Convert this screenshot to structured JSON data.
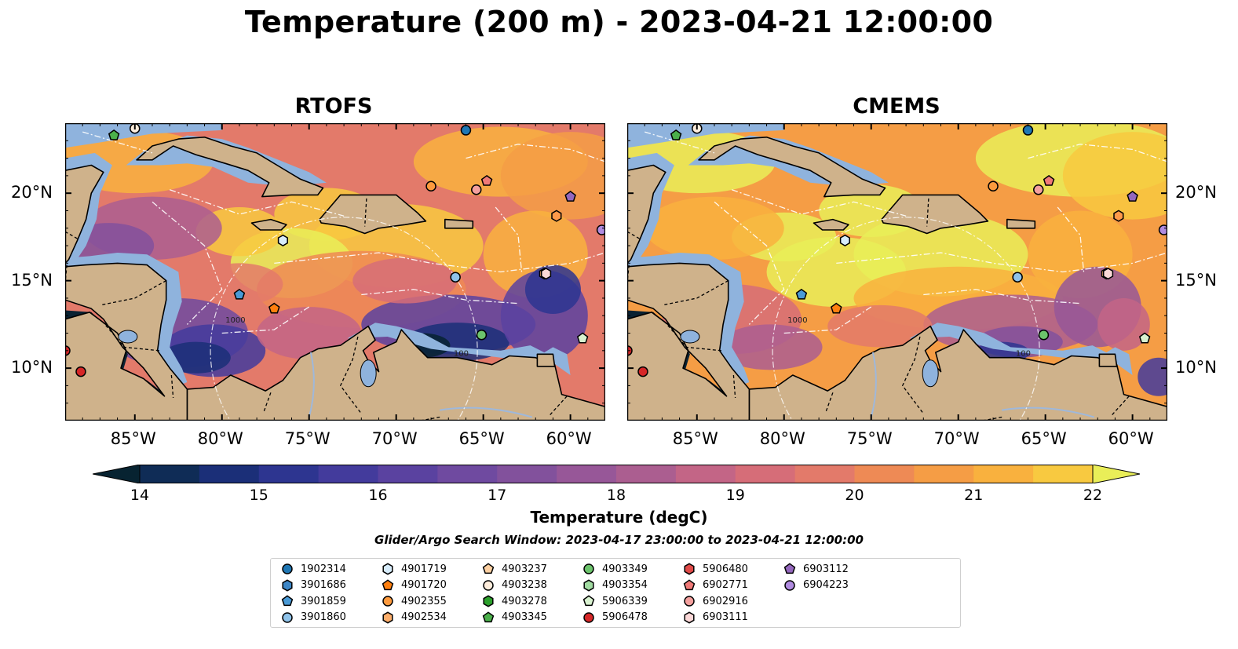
{
  "title": "Temperature (200 m) - 2023-04-21 12:00:00",
  "panels": [
    {
      "name": "RTOFS",
      "variant": "rtofs"
    },
    {
      "name": "CMEMS",
      "variant": "cmems"
    }
  ],
  "map": {
    "lon_range": [
      -89,
      -58
    ],
    "lat_range": [
      7,
      24
    ],
    "lon_ticks": [
      {
        "value": -85,
        "label": "85°W"
      },
      {
        "value": -80,
        "label": "80°W"
      },
      {
        "value": -75,
        "label": "75°W"
      },
      {
        "value": -70,
        "label": "70°W"
      },
      {
        "value": -65,
        "label": "65°W"
      },
      {
        "value": -60,
        "label": "60°W"
      }
    ],
    "lat_ticks": [
      {
        "value": 10,
        "label": "10°N"
      },
      {
        "value": 15,
        "label": "15°N"
      },
      {
        "value": 20,
        "label": "20°N"
      }
    ],
    "contour_labels": [
      "1000",
      "100"
    ]
  },
  "colorbar": {
    "min": 14,
    "max": 22,
    "step": 0.5,
    "extend": "both",
    "ticks": [
      "14",
      "15",
      "16",
      "17",
      "18",
      "19",
      "20",
      "21",
      "22"
    ],
    "label": "Temperature (degC)",
    "colors": [
      "#072331",
      "#0f2c56",
      "#1b2f78",
      "#2d3590",
      "#433b9c",
      "#5a42a0",
      "#6f4aa0",
      "#82519c",
      "#975798",
      "#ab5e90",
      "#c36586",
      "#d66d78",
      "#e37a6a",
      "#ee8a55",
      "#f59d45",
      "#f9b13e",
      "#f8c940",
      "#e9ee58"
    ]
  },
  "search_window": "Glider/Argo Search Window: 2023-04-17 23:00:00 to 2023-04-21 12:00:00",
  "floats": [
    {
      "id": "1902314",
      "marker": "circle",
      "color": "#1f77b4",
      "lon": -66.0,
      "lat": 23.6
    },
    {
      "id": "3901686",
      "marker": "hexagon",
      "color": "#3d86c6",
      "lon": null,
      "lat": null
    },
    {
      "id": "3901859",
      "marker": "pentagon",
      "color": "#4a9ad6",
      "lon": -79.0,
      "lat": 14.2
    },
    {
      "id": "3901860",
      "marker": "circle",
      "color": "#8fc3ea",
      "lon": -66.6,
      "lat": 15.2
    },
    {
      "id": "4901719",
      "marker": "hexagon",
      "color": "#d7ecfb",
      "lon": -76.5,
      "lat": 17.3
    },
    {
      "id": "4901720",
      "marker": "pentagon",
      "color": "#ff7f0e",
      "lon": -77.0,
      "lat": 13.4
    },
    {
      "id": "4902355",
      "marker": "circle",
      "color": "#fd9a3e",
      "lon": -68.0,
      "lat": 20.4
    },
    {
      "id": "4902534",
      "marker": "hexagon",
      "color": "#fdae6b",
      "lon": -61.5,
      "lat": 15.4
    },
    {
      "id": "4903237",
      "marker": "pentagon",
      "color": "#fdd0a2",
      "lon": null,
      "lat": null
    },
    {
      "id": "4903238",
      "marker": "circle",
      "color": "#feeddc",
      "lon": -85.0,
      "lat": 23.7
    },
    {
      "id": "4903278",
      "marker": "hexagon",
      "color": "#2ca02c",
      "lon": null,
      "lat": null
    },
    {
      "id": "4903345",
      "marker": "pentagon",
      "color": "#4bb04b",
      "lon": -86.2,
      "lat": 23.3
    },
    {
      "id": "4903349",
      "marker": "circle",
      "color": "#6cc46c",
      "lon": -65.1,
      "lat": 11.9
    },
    {
      "id": "4903354",
      "marker": "hexagon",
      "color": "#a1dba1",
      "lon": null,
      "lat": null
    },
    {
      "id": "5906339",
      "marker": "pentagon",
      "color": "#d9f2d0",
      "lon": -59.3,
      "lat": 11.7
    },
    {
      "id": "5906478",
      "marker": "circle",
      "color": "#d62728",
      "lon": -88.1,
      "lat": 9.8
    },
    {
      "id": "5906480",
      "marker": "hexagon",
      "color": "#e04a48",
      "lon": null,
      "lat": null
    },
    {
      "id": "6902771",
      "marker": "pentagon",
      "color": "#f07a78",
      "lon": -64.8,
      "lat": 20.7
    },
    {
      "id": "6902916",
      "marker": "circle",
      "color": "#f4a09e",
      "lon": -65.4,
      "lat": 20.2
    },
    {
      "id": "6903111",
      "marker": "hexagon",
      "color": "#fbd8d8",
      "lon": -61.4,
      "lat": 15.4
    },
    {
      "id": "6903112",
      "marker": "pentagon",
      "color": "#9467bd",
      "lon": -60.0,
      "lat": 19.8
    },
    {
      "id": "6904223",
      "marker": "circle",
      "color": "#b08be0",
      "lon": -58.2,
      "lat": 17.9
    }
  ],
  "extra_markers": [
    {
      "marker": "hexagon",
      "color": "#ff9a4a",
      "lon": -60.8,
      "lat": 18.7
    },
    {
      "marker": "circle",
      "color": "#d62728",
      "lon": -89.0,
      "lat": 11.0
    }
  ]
}
